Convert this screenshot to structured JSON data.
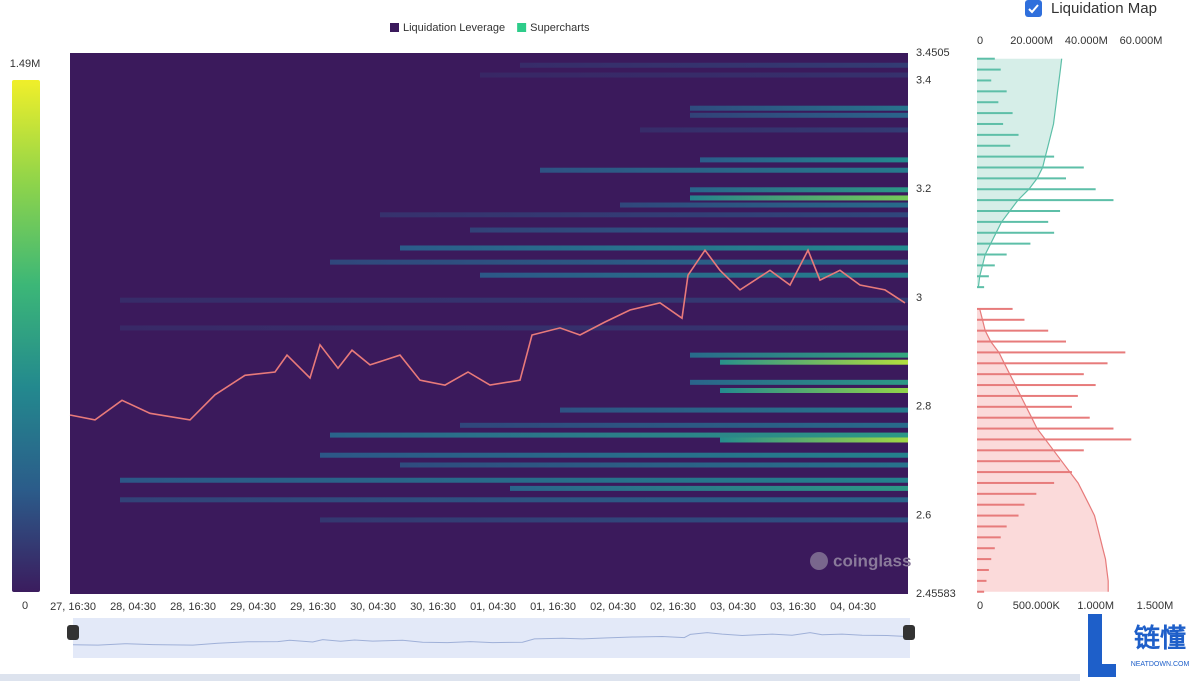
{
  "toggle": {
    "label": "Liquidation Map",
    "checked": true
  },
  "watermark": "coinglass",
  "logo": {
    "title": "链懂",
    "subtitle": "NEATDOWN.COM"
  },
  "chart_data": [
    {
      "type": "heatmap",
      "legend": [
        {
          "name": "Liquidation Leverage",
          "color": "#3b1a5c"
        },
        {
          "name": "Supercharts",
          "color": "#2ecc8a"
        }
      ],
      "background": "#3b1a5c",
      "xlim": [
        -0.6,
        167
      ],
      "xticks": [
        {
          "value": 0,
          "label": "27, 16:30"
        },
        {
          "value": 12,
          "label": "28, 04:30"
        },
        {
          "value": 24,
          "label": "28, 16:30"
        },
        {
          "value": 36,
          "label": "29, 04:30"
        },
        {
          "value": 48,
          "label": "29, 16:30"
        },
        {
          "value": 60,
          "label": "30, 04:30"
        },
        {
          "value": 72,
          "label": "30, 16:30"
        },
        {
          "value": 84,
          "label": "01, 04:30"
        },
        {
          "value": 96,
          "label": "01, 16:30"
        },
        {
          "value": 108,
          "label": "02, 04:30"
        },
        {
          "value": 120,
          "label": "02, 16:30"
        },
        {
          "value": 132,
          "label": "03, 04:30"
        },
        {
          "value": 144,
          "label": "03, 16:30"
        },
        {
          "value": 156,
          "label": "04, 04:30"
        }
      ],
      "ylim": [
        2.45583,
        3.4505
      ],
      "yticks": [
        2.45583,
        2.6,
        2.8,
        3,
        3.2,
        3.4,
        3.4505
      ],
      "colorscale": {
        "min": 0,
        "max": {
          "value": 1490000,
          "label": "1.49M"
        },
        "colors": [
          "#3b1c5e",
          "#2b5c8a",
          "#23898e",
          "#3cb777",
          "#8fd44a",
          "#f0ef2a"
        ]
      },
      "bands": {
        "prices": [
          3.428,
          3.41,
          3.349,
          3.336,
          3.309,
          3.254,
          3.235,
          3.199,
          3.184,
          3.171,
          3.153,
          3.125,
          3.092,
          3.066,
          3.042,
          2.996,
          2.945,
          2.895,
          2.882,
          2.845,
          2.83,
          2.794,
          2.766,
          2.748,
          2.739,
          2.711,
          2.693,
          2.665,
          2.65,
          2.629,
          2.592
        ],
        "start": [
          89.4,
          81.4,
          123.4,
          123.4,
          113.4,
          125.4,
          93.4,
          123.4,
          123.4,
          109.4,
          61.4,
          79.4,
          65.4,
          51.4,
          81.4,
          9.4,
          9.4,
          123.4,
          129.4,
          123.4,
          129.4,
          97.4,
          77.4,
          51.4,
          129.4,
          49.4,
          65.4,
          9.4,
          87.4,
          9.4,
          49.4
        ],
        "values": [
          150000,
          100000,
          450000,
          350000,
          150000,
          600000,
          500000,
          700000,
          1100000,
          400000,
          200000,
          350000,
          600000,
          400000,
          550000,
          150000,
          120000,
          800000,
          1300000,
          700000,
          1200000,
          500000,
          400000,
          700000,
          1250000,
          550000,
          450000,
          550000,
          700000,
          350000,
          250000
        ]
      },
      "series": [
        {
          "name": "Supercharts",
          "color": "#e87a7a",
          "x": [
            -0.6,
            4.4,
            9.8,
            15.4,
            23.4,
            28.4,
            34.4,
            40.4,
            42.8,
            47.4,
            49.4,
            53,
            55.8,
            59.4,
            65.4,
            69.4,
            74.4,
            79,
            83.4,
            89.4,
            91.8,
            97.4,
            101.4,
            106.4,
            111.4,
            117.4,
            121.8,
            123,
            126.4,
            129.4,
            133.4,
            139.4,
            143.4,
            147,
            149.4,
            153.4,
            157.4,
            162.4,
            166.4
          ],
          "values": [
            2.785,
            2.776,
            2.812,
            2.788,
            2.776,
            2.822,
            2.858,
            2.864,
            2.895,
            2.853,
            2.914,
            2.871,
            2.904,
            2.877,
            2.895,
            2.849,
            2.84,
            2.864,
            2.84,
            2.849,
            2.932,
            2.945,
            2.932,
            2.956,
            2.978,
            2.991,
            2.963,
            3.042,
            3.088,
            3.051,
            3.015,
            3.051,
            3.024,
            3.088,
            3.033,
            3.051,
            3.024,
            3.015,
            2.991
          ]
        }
      ]
    },
    {
      "type": "liquidation_map",
      "xlim": [
        0,
        1500000
      ],
      "xticks": [
        0,
        {
          "value": 500000,
          "label": "500.000K"
        },
        {
          "value": 1000000,
          "label": "1.000M"
        },
        {
          "value": 1500000,
          "label": "1.500M"
        }
      ],
      "x2lim": [
        0,
        60000000
      ],
      "x2ticks": [
        0,
        {
          "value": 20000000,
          "label": "20.000M"
        },
        {
          "value": 40000000,
          "label": "40.000M"
        },
        {
          "value": 60000000,
          "label": "60.000M"
        }
      ],
      "groups": [
        {
          "color": "#5dbfa8",
          "area_color": "#d6eee8",
          "prices": [
            3.44,
            3.42,
            3.4,
            3.38,
            3.36,
            3.34,
            3.32,
            3.3,
            3.28,
            3.26,
            3.24,
            3.22,
            3.2,
            3.18,
            3.16,
            3.14,
            3.12,
            3.1,
            3.08,
            3.06,
            3.04,
            3.02
          ],
          "values": [
            150000,
            200000,
            120000,
            250000,
            180000,
            300000,
            220000,
            350000,
            280000,
            650000,
            900000,
            750000,
            1000000,
            1150000,
            700000,
            600000,
            650000,
            450000,
            250000,
            150000,
            100000,
            60000
          ],
          "cumulative": [
            31000000,
            30500000,
            30000000,
            29500000,
            29000000,
            28500000,
            28000000,
            27000000,
            26000000,
            25000000,
            24000000,
            22000000,
            19000000,
            15000000,
            12000000,
            9000000,
            7000000,
            5000000,
            3000000,
            2000000,
            1000000,
            500000
          ]
        },
        {
          "color": "#e77b7b",
          "area_color": "#fbdada",
          "prices": [
            2.98,
            2.96,
            2.94,
            2.92,
            2.9,
            2.88,
            2.86,
            2.84,
            2.82,
            2.8,
            2.78,
            2.76,
            2.74,
            2.72,
            2.7,
            2.68,
            2.66,
            2.64,
            2.62,
            2.6,
            2.58,
            2.56,
            2.54,
            2.52,
            2.5,
            2.48,
            2.46
          ],
          "values": [
            300000,
            400000,
            600000,
            750000,
            1250000,
            1100000,
            900000,
            1000000,
            850000,
            800000,
            950000,
            1150000,
            1300000,
            900000,
            700000,
            800000,
            650000,
            500000,
            400000,
            350000,
            250000,
            200000,
            150000,
            120000,
            100000,
            80000,
            60000
          ],
          "cumulative": [
            1000000,
            2000000,
            3000000,
            5000000,
            8000000,
            10000000,
            12000000,
            14000000,
            16000000,
            18000000,
            20000000,
            22000000,
            25000000,
            28000000,
            31000000,
            34000000,
            37000000,
            39000000,
            41000000,
            43000000,
            44000000,
            45000000,
            46000000,
            47000000,
            47500000,
            48000000,
            48000000
          ]
        }
      ]
    }
  ]
}
